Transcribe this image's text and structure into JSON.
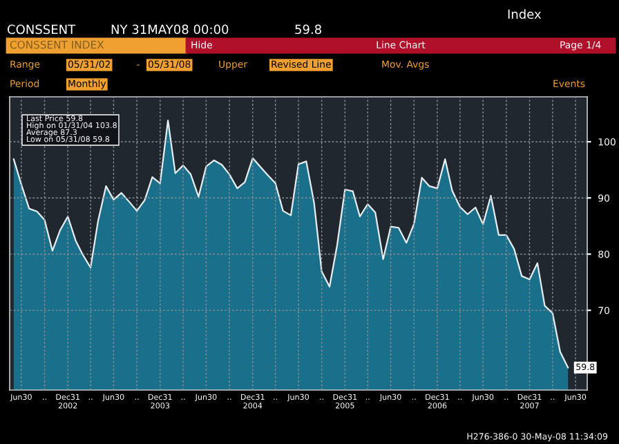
{
  "chart_data": {
    "type": "area",
    "title": "CONSSENT INDEX",
    "annotations": [
      "CONSSENT",
      "NY 31MAY08 00:00",
      "59.8",
      "Index",
      "Hide",
      "Line Chart",
      "Page 1/4",
      "Range",
      "05/31/02",
      "-",
      "05/31/08",
      "Upper",
      "Revised Line",
      "Mov. Avgs",
      "Period",
      "Monthly",
      "Events",
      "Last Price 59.8",
      "High on 01/31/04 103.8",
      "Average 87.3",
      "Low on 05/31/08 59.8",
      {
        "text": "59.8",
        "x": "2008-05-31",
        "y": 59.8
      },
      "H276-386-0 30-May-08 11:34:09"
    ],
    "x": [
      "2002-05-31",
      "2002-06-30",
      "2002-07-31",
      "2002-08-31",
      "2002-09-30",
      "2002-10-31",
      "2002-11-30",
      "2002-12-31",
      "2003-01-31",
      "2003-02-28",
      "2003-03-31",
      "2003-04-30",
      "2003-05-31",
      "2003-06-30",
      "2003-07-31",
      "2003-08-31",
      "2003-09-30",
      "2003-10-31",
      "2003-11-30",
      "2003-12-31",
      "2004-01-31",
      "2004-02-29",
      "2004-03-31",
      "2004-04-30",
      "2004-05-31",
      "2004-06-30",
      "2004-07-31",
      "2004-08-31",
      "2004-09-30",
      "2004-10-31",
      "2004-11-30",
      "2004-12-31",
      "2005-01-31",
      "2005-02-28",
      "2005-03-31",
      "2005-04-30",
      "2005-05-31",
      "2005-06-30",
      "2005-07-31",
      "2005-08-31",
      "2005-09-30",
      "2005-10-31",
      "2005-11-30",
      "2005-12-31",
      "2006-01-31",
      "2006-02-28",
      "2006-03-31",
      "2006-04-30",
      "2006-05-31",
      "2006-06-30",
      "2006-07-31",
      "2006-08-31",
      "2006-09-30",
      "2006-10-31",
      "2006-11-30",
      "2006-12-31",
      "2007-01-31",
      "2007-02-28",
      "2007-03-31",
      "2007-04-30",
      "2007-05-31",
      "2007-06-30",
      "2007-07-31",
      "2007-08-31",
      "2007-09-30",
      "2007-10-31",
      "2007-11-30",
      "2007-12-31",
      "2008-01-31",
      "2008-02-29",
      "2008-03-31",
      "2008-04-30",
      "2008-05-31"
    ],
    "series": [
      {
        "color": "#1a6f8a",
        "values": [
          96.9,
          92.4,
          88.1,
          87.6,
          86.1,
          80.6,
          84.2,
          86.7,
          82.4,
          79.9,
          77.6,
          86.0,
          92.1,
          89.7,
          90.9,
          89.3,
          87.7,
          89.6,
          93.7,
          92.6,
          103.8,
          94.4,
          95.8,
          94.2,
          90.2,
          95.6,
          96.7,
          95.9,
          94.2,
          91.7,
          92.8,
          97.1,
          95.5,
          94.1,
          92.6,
          87.7,
          86.9,
          96.0,
          96.5,
          89.1,
          76.9,
          74.2,
          81.6,
          91.5,
          91.2,
          86.7,
          88.9,
          87.4,
          79.1,
          84.9,
          84.7,
          82.0,
          85.4,
          93.6,
          92.1,
          91.7,
          96.9,
          91.3,
          88.4,
          87.1,
          88.3,
          85.3,
          90.4,
          83.4,
          83.4,
          80.9,
          76.1,
          75.5,
          78.4,
          70.8,
          69.5,
          62.6,
          59.8
        ]
      }
    ],
    "xlim": [
      "2002-05-15",
      "2008-08-15"
    ],
    "xticks": [
      {
        "value": "2002-06-30",
        "label": "Jun30"
      },
      {
        "value": "2002-09-30",
        "label": ".."
      },
      {
        "value": "2002-12-31",
        "label": "Dec31\n2002"
      },
      {
        "value": "2003-03-31",
        "label": ".."
      },
      {
        "value": "2003-06-30",
        "label": "Jun30"
      },
      {
        "value": "2003-09-30",
        "label": ".."
      },
      {
        "value": "2003-12-31",
        "label": "Dec31\n2003"
      },
      {
        "value": "2004-03-31",
        "label": ".."
      },
      {
        "value": "2004-06-30",
        "label": "Jun30"
      },
      {
        "value": "2004-09-30",
        "label": ".."
      },
      {
        "value": "2004-12-31",
        "label": "Dec31\n2004"
      },
      {
        "value": "2005-03-31",
        "label": ".."
      },
      {
        "value": "2005-06-30",
        "label": "Jun30"
      },
      {
        "value": "2005-09-30",
        "label": ".."
      },
      {
        "value": "2005-12-31",
        "label": "Dec31\n2005"
      },
      {
        "value": "2006-03-31",
        "label": ".."
      },
      {
        "value": "2006-06-30",
        "label": "Jun30"
      },
      {
        "value": "2006-09-30",
        "label": ".."
      },
      {
        "value": "2006-12-31",
        "label": "Dec31\n2006"
      },
      {
        "value": "2007-03-31",
        "label": ".."
      },
      {
        "value": "2007-06-30",
        "label": "Jun30"
      },
      {
        "value": "2007-09-30",
        "label": ".."
      },
      {
        "value": "2007-12-31",
        "label": "Dec31\n2007"
      },
      {
        "value": "2008-03-31",
        "label": ".."
      },
      {
        "value": "2008-06-30",
        "label": "Jun30"
      }
    ],
    "ylim": [
      55.8,
      108
    ],
    "yticks": [
      70,
      80,
      90,
      100
    ],
    "grid": true
  }
}
